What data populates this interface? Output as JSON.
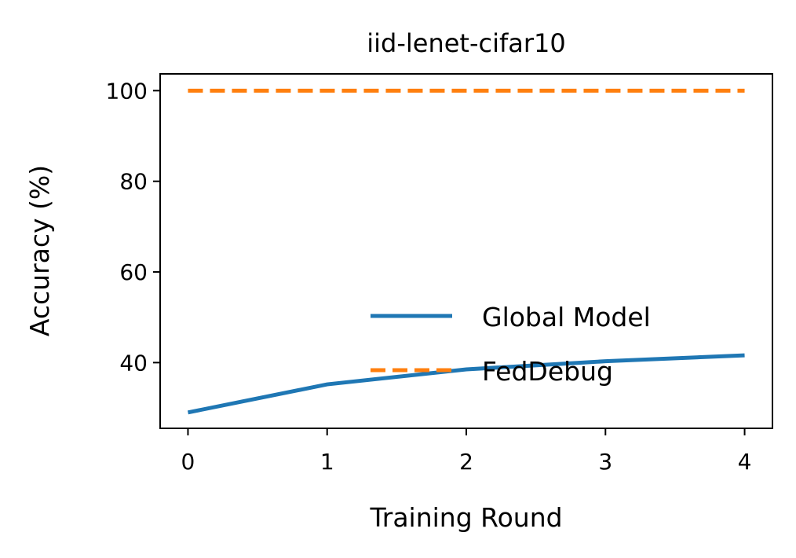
{
  "chart_data": {
    "type": "line",
    "title": "iid-lenet-cifar10",
    "xlabel": "Training Round",
    "ylabel": "Accuracy (%)",
    "x": [
      0,
      1,
      2,
      3,
      4
    ],
    "xlim": [
      -0.2,
      4.2
    ],
    "ylim": [
      25.5,
      103.7
    ],
    "xticks": [
      "0",
      "1",
      "2",
      "3",
      "4"
    ],
    "yticks": [
      "40",
      "60",
      "80",
      "100"
    ],
    "grid": false,
    "legend_position": "lower-right",
    "series": [
      {
        "name": "Global Model",
        "values": [
          29.0,
          35.2,
          38.5,
          40.3,
          41.6
        ],
        "color": "#1f77b4",
        "style": "solid"
      },
      {
        "name": "FedDebug",
        "values": [
          100,
          100,
          100,
          100,
          100
        ],
        "color": "#ff7f0e",
        "style": "dashed"
      }
    ]
  }
}
